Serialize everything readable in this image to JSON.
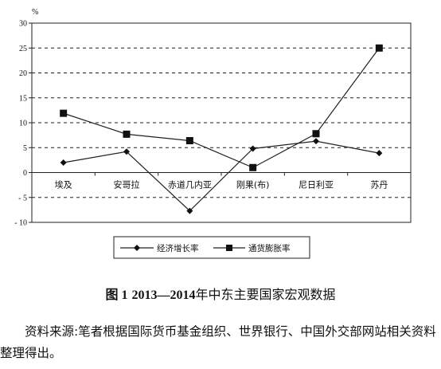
{
  "chart_data": {
    "type": "line",
    "categories": [
      "埃及",
      "安哥拉",
      "赤道几内亚",
      "刚果(布)",
      "尼日利亚",
      "苏丹"
    ],
    "series": [
      {
        "name": "经济增长率",
        "values": [
          2.0,
          4.2,
          -7.7,
          4.8,
          6.3,
          3.9
        ],
        "marker": "diamond"
      },
      {
        "name": "通货膨胀率",
        "values": [
          11.9,
          7.7,
          6.4,
          1.0,
          7.8,
          25.0
        ],
        "marker": "square"
      }
    ],
    "ylabel": "%",
    "ylim": [
      -10,
      30
    ],
    "yticks": [
      30,
      25,
      20,
      15,
      10,
      5,
      0,
      -5,
      -10
    ],
    "ytick_labels": [
      "30",
      "25",
      "20",
      "15",
      "10",
      "5",
      "0",
      "- 5",
      "- 10"
    ],
    "grid": "dashed-horizontal",
    "legend": "bottom-center",
    "colors": {
      "line": "#222222",
      "grid": "#222222"
    }
  },
  "caption": {
    "fig": "图 1",
    "years": "2013—2014",
    "text": "年中东主要国家宏观数据"
  },
  "source": "资料来源:笔者根据国际货币基金组织、世界银行、中国外交部网站相关资料整理得出。"
}
